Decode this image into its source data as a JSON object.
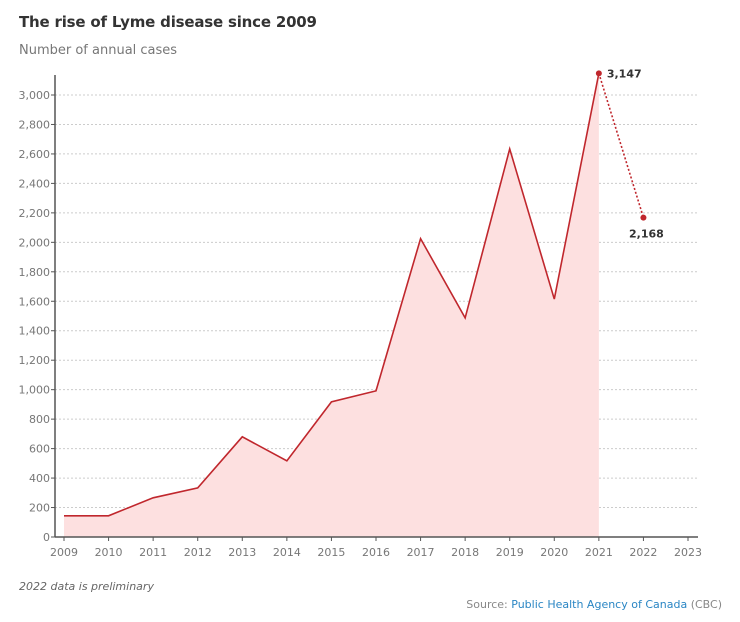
{
  "chart_data": {
    "type": "area",
    "title": "The rise of Lyme disease since 2009",
    "subtitle": "Number of annual cases",
    "xlabel": "",
    "ylabel": "",
    "x": [
      2009,
      2010,
      2011,
      2012,
      2013,
      2014,
      2015,
      2016,
      2017,
      2018,
      2019,
      2020,
      2021,
      2022
    ],
    "values": [
      144,
      144,
      266,
      333,
      680,
      517,
      917,
      992,
      2025,
      1487,
      2634,
      1615,
      3147,
      2168
    ],
    "preliminary_from": 2022,
    "annotations": [
      {
        "x": 2021,
        "label": "3,147"
      },
      {
        "x": 2022,
        "label": "2,168"
      }
    ],
    "xlim": [
      2009,
      2023
    ],
    "ylim": [
      0,
      3000
    ],
    "x_ticks": [
      "2009",
      "2010",
      "2011",
      "2012",
      "2013",
      "2014",
      "2015",
      "2016",
      "2017",
      "2018",
      "2019",
      "2020",
      "2021",
      "2022",
      "2023"
    ],
    "y_ticks": [
      "0",
      "200",
      "400",
      "600",
      "800",
      "1,000",
      "1,200",
      "1,400",
      "1,600",
      "1,800",
      "2,000",
      "2,200",
      "2,400",
      "2,600",
      "2,800",
      "3,000"
    ],
    "grid": true,
    "colors": {
      "line": "#c0272d",
      "fill": "#fde0e0",
      "grid": "#cccccc"
    }
  },
  "footer": {
    "note": "2022 data is preliminary",
    "source_prefix": "Source: ",
    "source_link": "Public Health Agency of Canada",
    "source_suffix": " (CBC)"
  }
}
